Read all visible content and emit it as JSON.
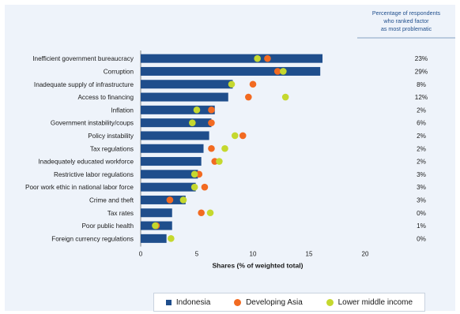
{
  "chart_data": {
    "type": "bar",
    "orientation": "horizontal",
    "categories": [
      "Inefficient government bureaucracy",
      "Corruption",
      "Inadequate supply of infrastructure",
      "Access to financing",
      "Inflation",
      "Government instability/coups",
      "Policy instability",
      "Tax regulations",
      "Inadequately educated workforce",
      "Restrictive labor regulations",
      "Poor work ethic in national labor force",
      "Crime and theft",
      "Tax rates",
      "Poor public health",
      "Foreign currency regulations"
    ],
    "series": [
      {
        "name": "Indonesia",
        "kind": "bar",
        "values": [
          16.2,
          16.0,
          8.2,
          7.8,
          6.6,
          6.3,
          6.1,
          5.6,
          5.4,
          5.1,
          4.9,
          4.0,
          2.8,
          2.8,
          2.3
        ]
      },
      {
        "name": "Developing Asia",
        "kind": "dot",
        "values": [
          11.3,
          12.2,
          10.0,
          9.6,
          6.3,
          6.3,
          9.1,
          6.3,
          6.6,
          5.2,
          5.7,
          2.6,
          5.4,
          1.4,
          null
        ]
      },
      {
        "name": "Lower middle income",
        "kind": "dot",
        "values": [
          10.4,
          12.7,
          8.1,
          12.9,
          5.0,
          4.6,
          8.4,
          7.5,
          7.0,
          4.8,
          4.8,
          3.8,
          6.2,
          1.3,
          2.7
        ]
      }
    ],
    "xlabel": "Shares (% of weighted total)",
    "xlim": [
      0,
      20
    ],
    "xticks": [
      "0",
      "5",
      "10",
      "15",
      "20"
    ],
    "right_column_header": [
      "Percentage of respondents",
      "who ranked factor",
      "as most problematic"
    ],
    "right_column_values": [
      "23%",
      "29%",
      "8%",
      "12%",
      "2%",
      "6%",
      "2%",
      "2%",
      "2%",
      "3%",
      "3%",
      "3%",
      "0%",
      "1%",
      "0%"
    ],
    "colors": {
      "Indonesia": "#1f4e8c",
      "Developing Asia": "#f26a21",
      "Lower middle income": "#c5d82e"
    },
    "legend_position": "bottom",
    "grid": false
  }
}
